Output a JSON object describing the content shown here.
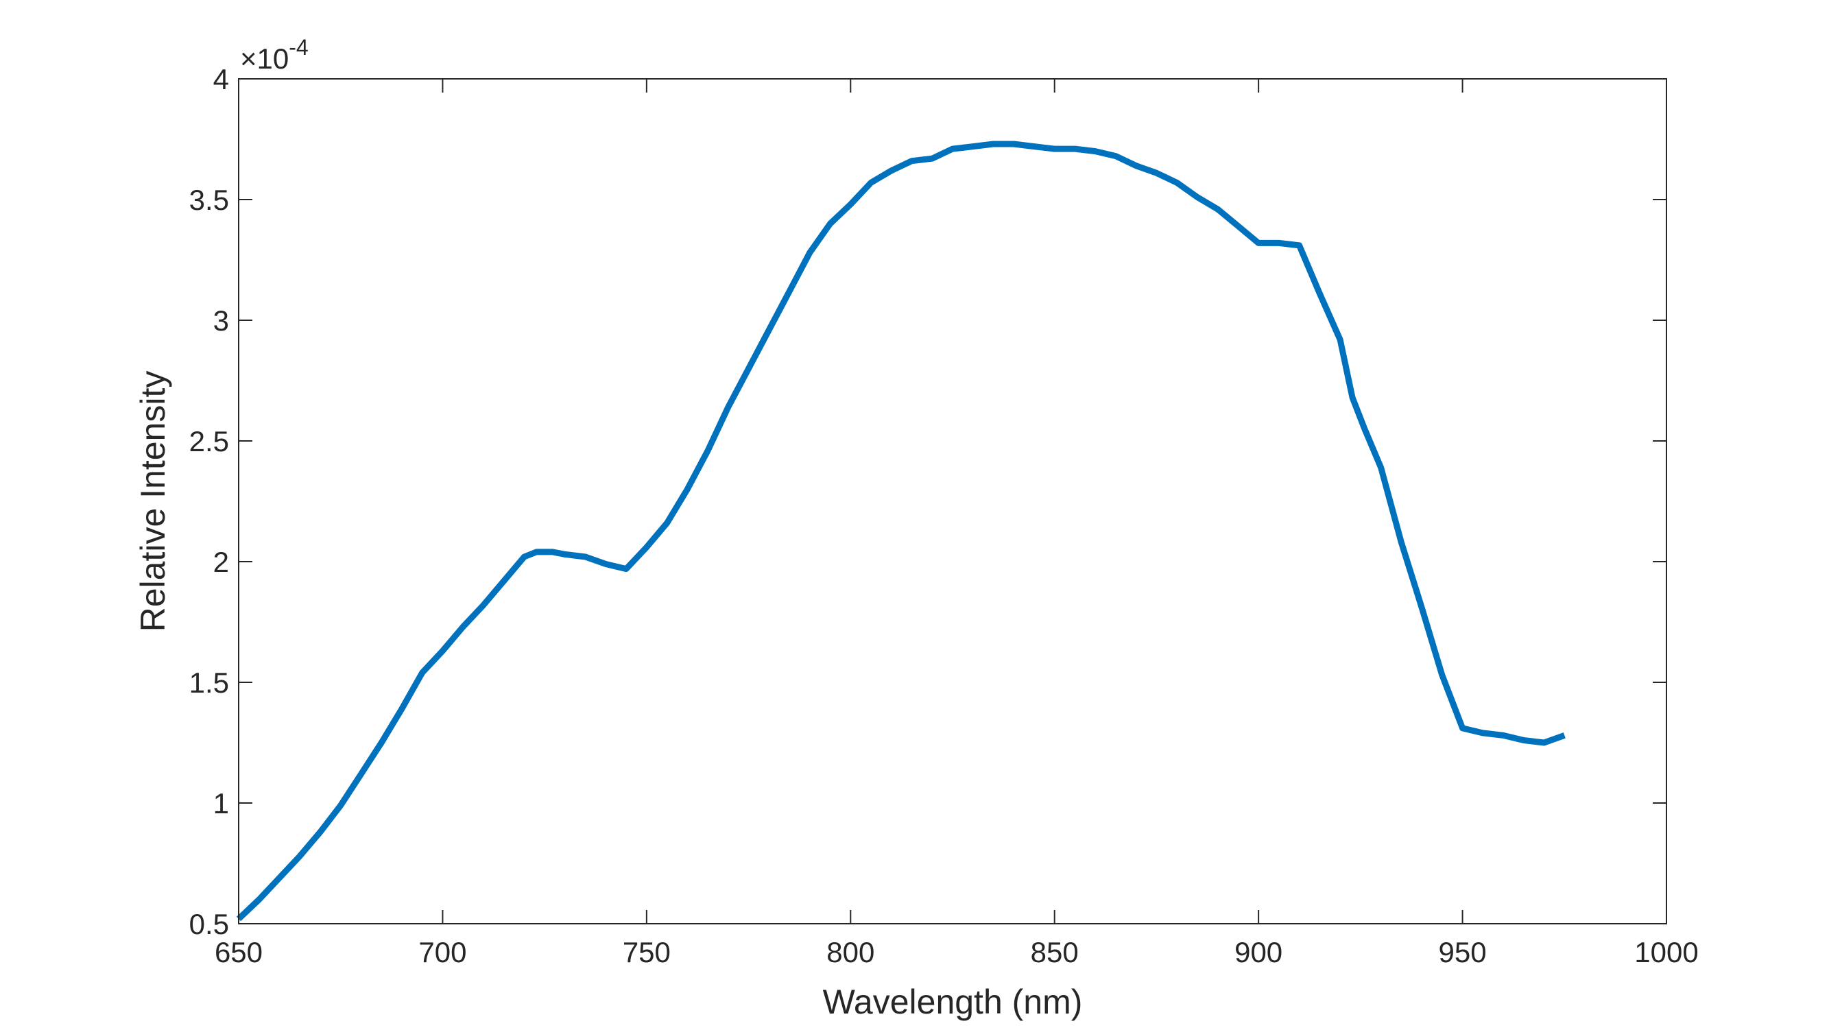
{
  "chart_data": {
    "type": "line",
    "xlabel": "Wavelength (nm)",
    "ylabel": "Relative Intensity",
    "xlim": [
      650,
      1000
    ],
    "ylim": [
      0.5,
      4
    ],
    "y_exponent": {
      "base": "×10",
      "power": "-4"
    },
    "xticks": [
      650,
      700,
      750,
      800,
      850,
      900,
      950,
      1000
    ],
    "yticks": [
      0.5,
      1,
      1.5,
      2,
      2.5,
      3,
      3.5,
      4
    ],
    "xtick_labels": [
      "650",
      "700",
      "750",
      "800",
      "850",
      "900",
      "950",
      "1000"
    ],
    "ytick_labels": [
      "0.5",
      "1",
      "1.5",
      "2",
      "2.5",
      "3",
      "3.5",
      "4"
    ],
    "grid": false,
    "box": true,
    "series": [
      {
        "color": "#0072BD",
        "x": [
          650,
          655,
          660,
          665,
          670,
          675,
          680,
          685,
          690,
          695,
          700,
          705,
          710,
          715,
          720,
          723,
          725,
          727,
          730,
          735,
          740,
          745,
          750,
          755,
          760,
          765,
          770,
          775,
          780,
          785,
          790,
          795,
          800,
          805,
          810,
          815,
          820,
          825,
          830,
          835,
          840,
          845,
          850,
          855,
          860,
          865,
          870,
          875,
          880,
          885,
          890,
          895,
          900,
          905,
          910,
          915,
          920,
          923,
          926,
          930,
          935,
          940,
          945,
          950,
          955,
          960,
          965,
          970,
          975
        ],
        "y": [
          0.52,
          0.6,
          0.69,
          0.78,
          0.88,
          0.99,
          1.12,
          1.25,
          1.39,
          1.54,
          1.63,
          1.73,
          1.82,
          1.92,
          2.02,
          2.04,
          2.04,
          2.04,
          2.03,
          2.02,
          1.99,
          1.97,
          2.06,
          2.16,
          2.3,
          2.46,
          2.64,
          2.8,
          2.96,
          3.12,
          3.28,
          3.4,
          3.48,
          3.57,
          3.62,
          3.66,
          3.67,
          3.71,
          3.72,
          3.73,
          3.73,
          3.72,
          3.71,
          3.71,
          3.7,
          3.68,
          3.64,
          3.61,
          3.57,
          3.51,
          3.46,
          3.39,
          3.32,
          3.32,
          3.31,
          3.11,
          2.92,
          2.68,
          2.55,
          2.39,
          2.08,
          1.81,
          1.53,
          1.31,
          1.29,
          1.28,
          1.26,
          1.25,
          1.28
        ]
      }
    ]
  }
}
